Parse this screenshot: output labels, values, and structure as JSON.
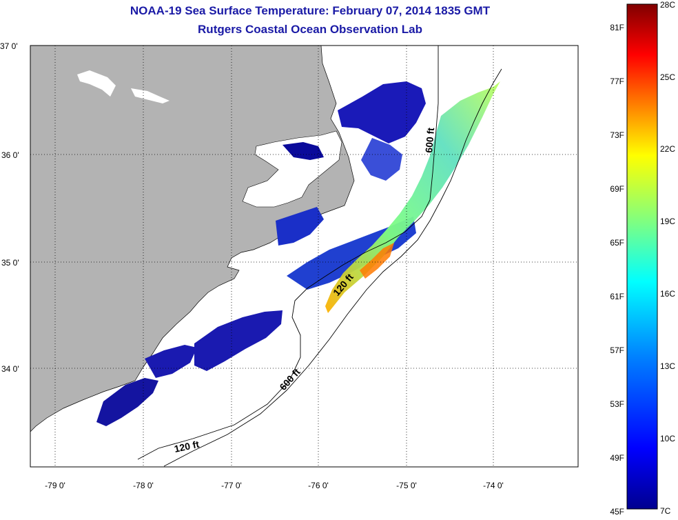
{
  "title": {
    "line1": "NOAA-19 Sea Surface Temperature:  February 07, 2014 1835 GMT",
    "line2": "Rutgers Coastal Ocean Observation Lab"
  },
  "map": {
    "lat_labels": [
      "37 0'",
      "36 0'",
      "35 0'",
      "34 0'"
    ],
    "lon_labels": [
      "-79 0'",
      "-78 0'",
      "-77 0'",
      "-76 0'",
      "-75 0'",
      "-74 0'"
    ],
    "depth_labels": [
      "600 ft",
      "120 ft",
      "600 ft",
      "120 ft"
    ],
    "land_color": "#b3b3b3"
  },
  "colorbar": {
    "f_labels": [
      "81F",
      "77F",
      "73F",
      "69F",
      "65F",
      "61F",
      "57F",
      "53F",
      "49F",
      "45F"
    ],
    "c_labels": [
      "28C",
      "25C",
      "22C",
      "19C",
      "16C",
      "13C",
      "10C",
      "7C"
    ],
    "colors": [
      "#800000",
      "#ff0000",
      "#ff8000",
      "#ffff00",
      "#80ff80",
      "#00ffff",
      "#0080ff",
      "#0000ff",
      "#00008f"
    ]
  }
}
